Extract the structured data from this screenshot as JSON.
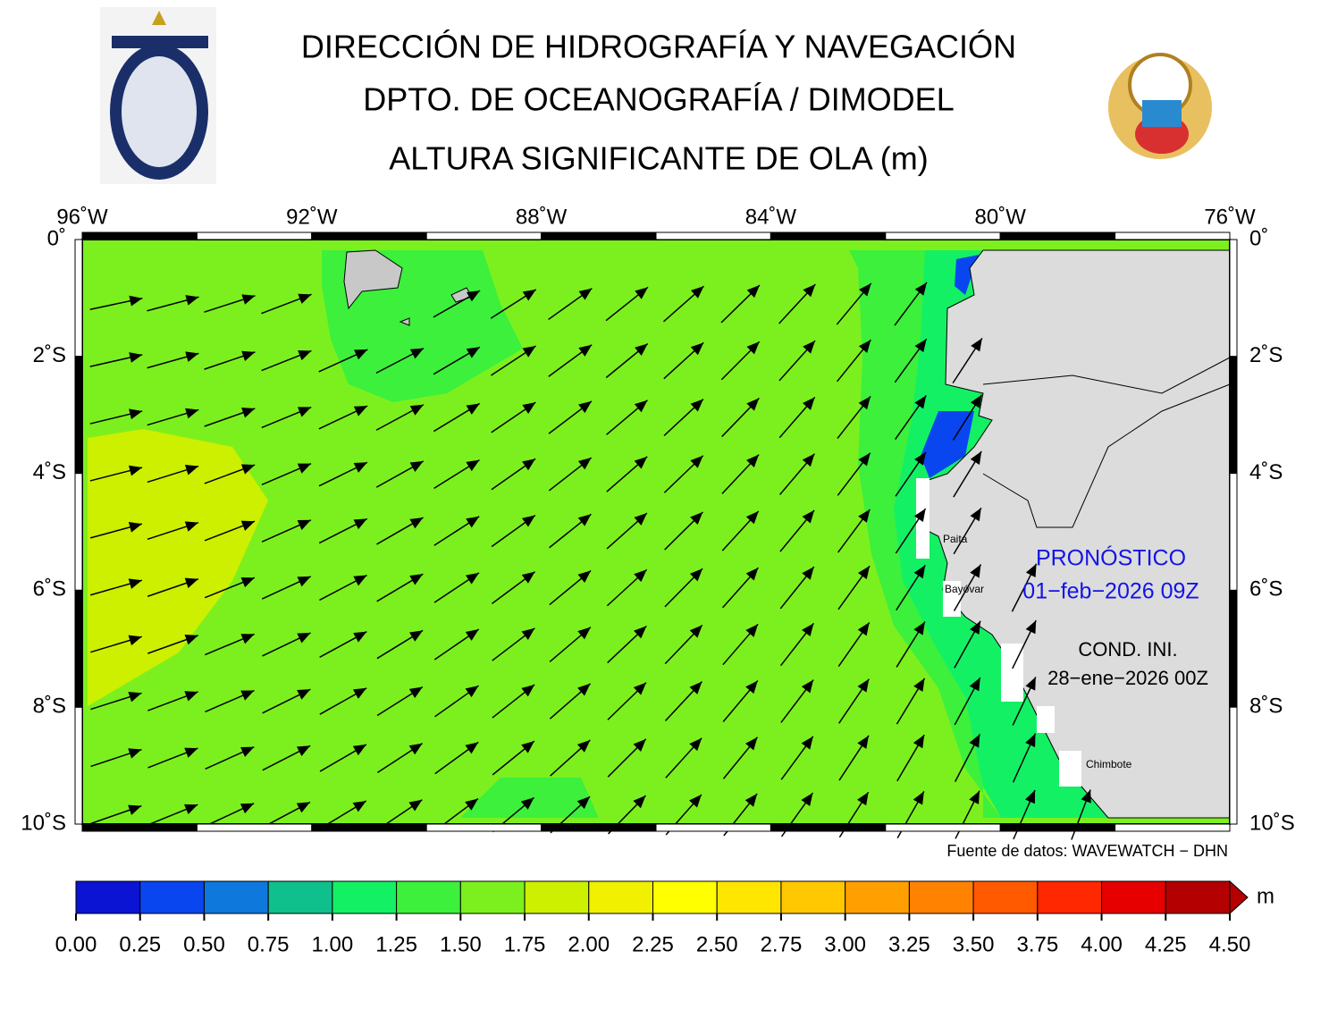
{
  "header": {
    "title_lines": [
      "DIRECCIÓN DE HIDROGRAFÍA Y NAVEGACIÓN",
      "DPTO. DE OCEANOGRAFÍA / DIMODEL",
      "ALTURA SIGNIFICANTE DE OLA (m)"
    ]
  },
  "map": {
    "lon_ticks": [
      {
        "value": -96,
        "label": "96˚W"
      },
      {
        "value": -92,
        "label": "92˚W"
      },
      {
        "value": -88,
        "label": "88˚W"
      },
      {
        "value": -84,
        "label": "84˚W"
      },
      {
        "value": -80,
        "label": "80˚W"
      },
      {
        "value": -76,
        "label": "76˚W"
      }
    ],
    "lat_ticks": [
      {
        "value": 0,
        "label": "0˚"
      },
      {
        "value": -2,
        "label": "2˚S"
      },
      {
        "value": -4,
        "label": "4˚S"
      },
      {
        "value": -6,
        "label": "6˚S"
      },
      {
        "value": -8,
        "label": "8˚S"
      },
      {
        "value": -10,
        "label": "10˚S"
      }
    ],
    "lon_range": [
      -96,
      -76
    ],
    "lat_range": [
      0,
      -10
    ],
    "places": [
      "Paita",
      "Bayóvar",
      "Chimbote"
    ],
    "forecast": {
      "label": "PRONÓSTICO",
      "date": "01−feb−2026 09Z"
    },
    "init": {
      "label": "COND. INI.",
      "date": "28−ene−2026 00Z"
    },
    "source": "Fuente de datos: WAVEWATCH − DHN"
  },
  "colorbar": {
    "unit": "m",
    "ticks": [
      {
        "value": 0,
        "label": "0.00"
      },
      {
        "value": 0.25,
        "label": "0.25"
      },
      {
        "value": 0.5,
        "label": "0.50"
      },
      {
        "value": 0.75,
        "label": "0.75"
      },
      {
        "value": 1,
        "label": "1.00"
      },
      {
        "value": 1.25,
        "label": "1.25"
      },
      {
        "value": 1.5,
        "label": "1.50"
      },
      {
        "value": 1.75,
        "label": "1.75"
      },
      {
        "value": 2,
        "label": "2.00"
      },
      {
        "value": 2.25,
        "label": "2.25"
      },
      {
        "value": 2.5,
        "label": "2.50"
      },
      {
        "value": 2.75,
        "label": "2.75"
      },
      {
        "value": 3,
        "label": "3.00"
      },
      {
        "value": 3.25,
        "label": "3.25"
      },
      {
        "value": 3.5,
        "label": "3.50"
      },
      {
        "value": 3.75,
        "label": "3.75"
      },
      {
        "value": 4,
        "label": "4.00"
      },
      {
        "value": 4.25,
        "label": "4.25"
      },
      {
        "value": 4.5,
        "label": "4.50"
      }
    ],
    "colors": [
      "#0a14d2",
      "#0a46f0",
      "#0f78dc",
      "#0fbf8c",
      "#14f064",
      "#3cf03c",
      "#7cf01e",
      "#ccf000",
      "#f0f000",
      "#ffff00",
      "#ffe600",
      "#ffc800",
      "#ffa000",
      "#ff8200",
      "#ff5a00",
      "#ff2800",
      "#e60000",
      "#b40000"
    ]
  }
}
